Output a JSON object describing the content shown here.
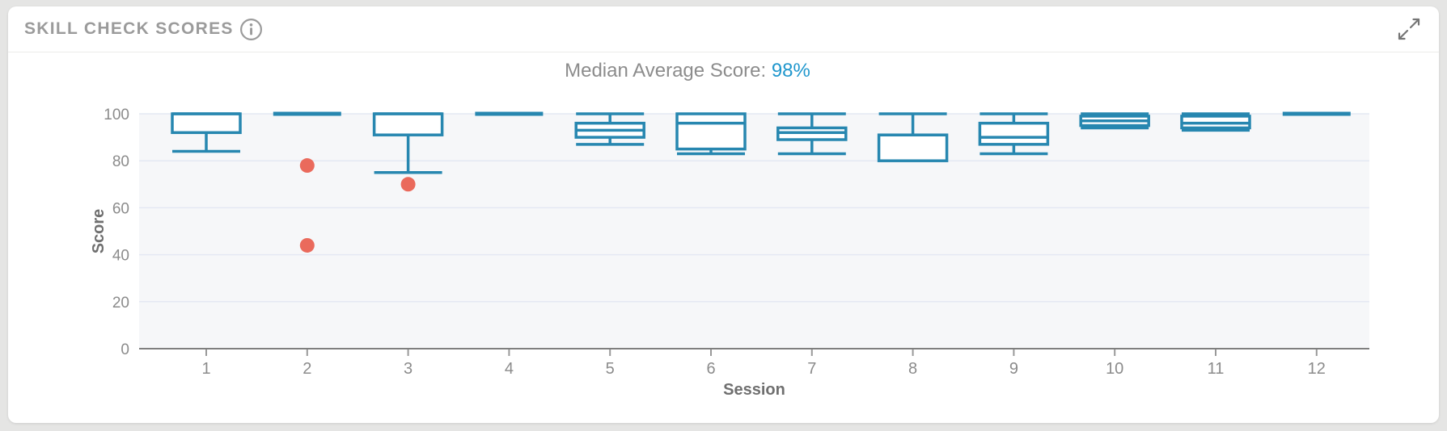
{
  "card": {
    "title": "SKILL CHECK SCORES",
    "info_icon": "circled-i",
    "expand_icon": "diagonal-expand-arrows"
  },
  "subtitle": {
    "label": "Median Average Score:",
    "value": "98%"
  },
  "colors": {
    "box": "#2787b0",
    "outlier": "#ea6a5c",
    "accent_value": "#2097cd",
    "title_gray": "#9b9b9b",
    "plot_bg": "#f6f7f9",
    "grid": "#e4e8f3",
    "axis": "#7f7f7f",
    "tick_mark": "#999999",
    "tick_text": "#8b8b8b",
    "axis_title": "#6f6f6f"
  },
  "chart_data": {
    "type": "box",
    "title": "Median Average Score: 98%",
    "xlabel": "Session",
    "ylabel": "Score",
    "ylim": [
      0,
      100
    ],
    "yticks": [
      0,
      20,
      40,
      60,
      80,
      100
    ],
    "grid": true,
    "legend": false,
    "categories": [
      "1",
      "2",
      "3",
      "4",
      "5",
      "6",
      "7",
      "8",
      "9",
      "10",
      "11",
      "12"
    ],
    "sessions": [
      {
        "session": 1,
        "min": 84,
        "q1": 92,
        "median": 100,
        "q3": 100,
        "max": 100,
        "outliers": []
      },
      {
        "session": 2,
        "min": 100,
        "q1": 100,
        "median": 100,
        "q3": 100,
        "max": 100,
        "outliers": [
          78,
          44
        ]
      },
      {
        "session": 3,
        "min": 75,
        "q1": 91,
        "median": 100,
        "q3": 100,
        "max": 100,
        "outliers": [
          70
        ]
      },
      {
        "session": 4,
        "min": 100,
        "q1": 100,
        "median": 100,
        "q3": 100,
        "max": 100,
        "outliers": []
      },
      {
        "session": 5,
        "min": 87,
        "q1": 90,
        "median": 93,
        "q3": 96,
        "max": 100,
        "outliers": []
      },
      {
        "session": 6,
        "min": 83,
        "q1": 85,
        "median": 96,
        "q3": 100,
        "max": 100,
        "outliers": []
      },
      {
        "session": 7,
        "min": 83,
        "q1": 89,
        "median": 92,
        "q3": 94,
        "max": 100,
        "outliers": []
      },
      {
        "session": 8,
        "min": 80,
        "q1": 80,
        "median": 91,
        "q3": 91,
        "max": 100,
        "outliers": []
      },
      {
        "session": 9,
        "min": 83,
        "q1": 87,
        "median": 90,
        "q3": 96,
        "max": 100,
        "outliers": []
      },
      {
        "session": 10,
        "min": 94,
        "q1": 95,
        "median": 97,
        "q3": 99,
        "max": 100,
        "outliers": []
      },
      {
        "session": 11,
        "min": 93,
        "q1": 94,
        "median": 96,
        "q3": 99,
        "max": 100,
        "outliers": []
      },
      {
        "session": 12,
        "min": 100,
        "q1": 100,
        "median": 100,
        "q3": 100,
        "max": 100,
        "outliers": []
      }
    ]
  }
}
